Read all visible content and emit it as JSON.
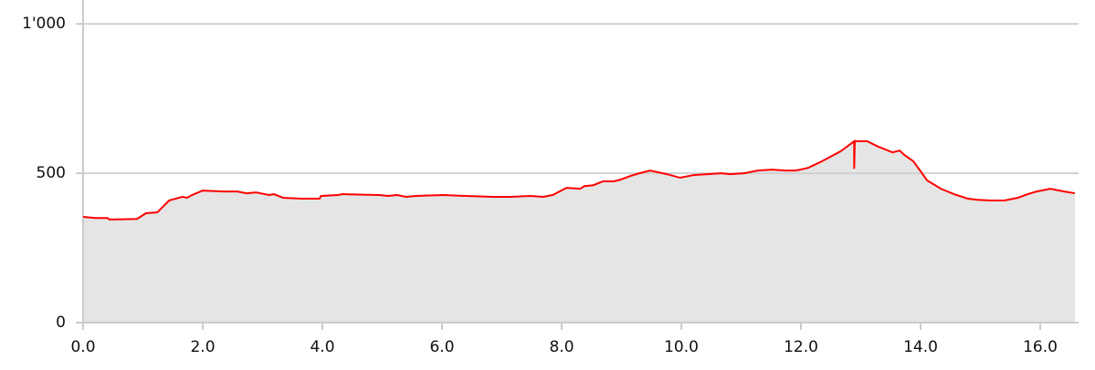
{
  "chart_data": {
    "type": "area",
    "x": [
      0,
      0.21,
      0.41,
      0.44,
      0.9,
      1.05,
      1.24,
      1.44,
      1.66,
      1.74,
      1.82,
      2.0,
      2.35,
      2.58,
      2.73,
      2.89,
      3.04,
      3.11,
      3.19,
      3.34,
      3.65,
      3.95,
      3.98,
      4.26,
      4.34,
      4.95,
      5.1,
      5.25,
      5.4,
      5.56,
      6.02,
      6.4,
      6.85,
      7.16,
      7.47,
      7.69,
      7.85,
      8.08,
      8.31,
      8.38,
      8.53,
      8.69,
      8.87,
      8.99,
      9.15,
      9.3,
      9.48,
      9.76,
      9.98,
      10.21,
      10.44,
      10.67,
      10.82,
      11.05,
      11.28,
      11.51,
      11.74,
      11.92,
      12.12,
      12.35,
      12.66,
      12.89,
      12.89,
      12.9,
      13.11,
      13.27,
      13.42,
      13.53,
      13.65,
      13.73,
      13.88,
      14.11,
      14.34,
      14.56,
      14.79,
      14.95,
      15.18,
      15.4,
      15.63,
      15.79,
      15.94,
      16.17,
      16.4,
      16.58
    ],
    "values": [
      354,
      350,
      350,
      345,
      347,
      366,
      369,
      409,
      421,
      418,
      427,
      442,
      439,
      439,
      433,
      436,
      430,
      427,
      430,
      418,
      415,
      415,
      424,
      427,
      430,
      427,
      424,
      427,
      421,
      424,
      427,
      424,
      421,
      421,
      424,
      421,
      427,
      451,
      448,
      457,
      460,
      473,
      473,
      479,
      491,
      500,
      509,
      497,
      485,
      494,
      497,
      500,
      497,
      500,
      509,
      512,
      509,
      509,
      518,
      540,
      573,
      607,
      515,
      607,
      607,
      591,
      579,
      570,
      576,
      561,
      540,
      476,
      448,
      430,
      415,
      411,
      409,
      409,
      418,
      430,
      439,
      448,
      439,
      433
    ],
    "color": "#ff0000",
    "area_color": "#e5e5e5",
    "xlim": [
      0,
      16.58
    ],
    "ylim": [
      0,
      1080
    ],
    "xticks": [
      {
        "value": 0,
        "label": "0.0"
      },
      {
        "value": 2,
        "label": "2.0"
      },
      {
        "value": 4,
        "label": "4.0"
      },
      {
        "value": 6,
        "label": "6.0"
      },
      {
        "value": 8,
        "label": "8.0"
      },
      {
        "value": 10,
        "label": "10.0"
      },
      {
        "value": 12,
        "label": "12.0"
      },
      {
        "value": 14,
        "label": "14.0"
      },
      {
        "value": 16,
        "label": "16.0"
      }
    ],
    "yticks": [
      0,
      500,
      {
        "value": 1000,
        "label": "1'000"
      }
    ],
    "grid": true
  }
}
